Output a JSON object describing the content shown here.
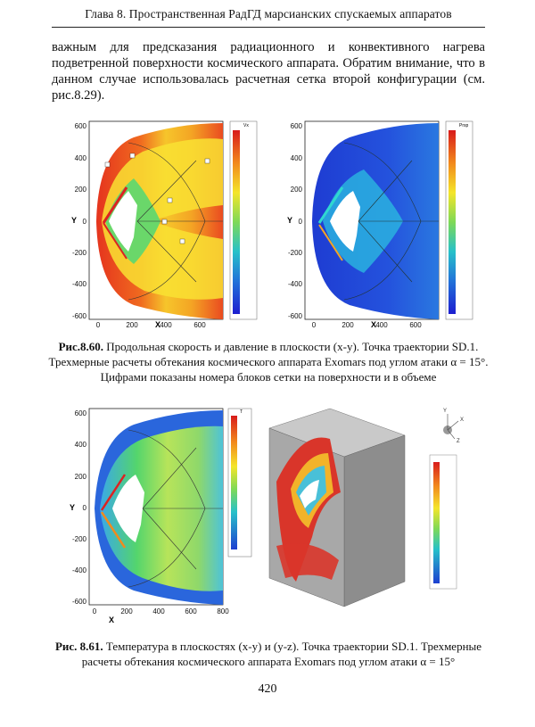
{
  "header": {
    "title": "Глава 8. Пространственная РадГД марсианских спускаемых аппаратов"
  },
  "body_text": "важным для предсказания радиационного и конвективного нагрева подветренной поверхности космического аппарата. Обратим внимание, что в данном случае использовалась расчетная сетка второй конфигурации (см. рис.8.29).",
  "figure_860": {
    "left_plot": {
      "legend_title": "Vx",
      "y_axis_label": "Y",
      "x_axis_label": "X"
    },
    "right_plot": {
      "legend_title": "Prsp",
      "y_axis_label": "Y",
      "x_axis_label": "X"
    },
    "y_ticks": [
      "600",
      "400",
      "200",
      "0",
      "-200",
      "-400",
      "-600"
    ],
    "x_ticks": [
      "0",
      "200",
      "400",
      "600"
    ],
    "caption_label": "Рис.8.60.",
    "caption_text": "Продольная скорость и давление в плоскости (x-y). Точка траектории SD.1. Трехмерные расчеты обтекания космического аппарата Exomars под углом атаки",
    "caption_alpha": "α = 15°",
    "caption_tail": ". Цифрами показаны номера блоков сетки на поверхности и в объеме"
  },
  "figure_861": {
    "left_plot": {
      "legend_title": "T",
      "y_axis_label": "Y",
      "x_axis_label": "X"
    },
    "y_ticks": [
      "600",
      "400",
      "200",
      "0",
      "-200",
      "-400",
      "-600"
    ],
    "x_ticks": [
      "0",
      "200",
      "400",
      "600",
      "800"
    ],
    "axes_labels": [
      "Y",
      "X",
      "Z"
    ],
    "caption_label": "Рис. 8.61.",
    "caption_text": "Температура в плоскостях (x-y) и (y-z). Точка траектории SD.1. Трехмерные расчеты обтекания космического аппарата Exomars под углом атаки",
    "caption_alpha": "α = 15°"
  },
  "page_number": "420"
}
